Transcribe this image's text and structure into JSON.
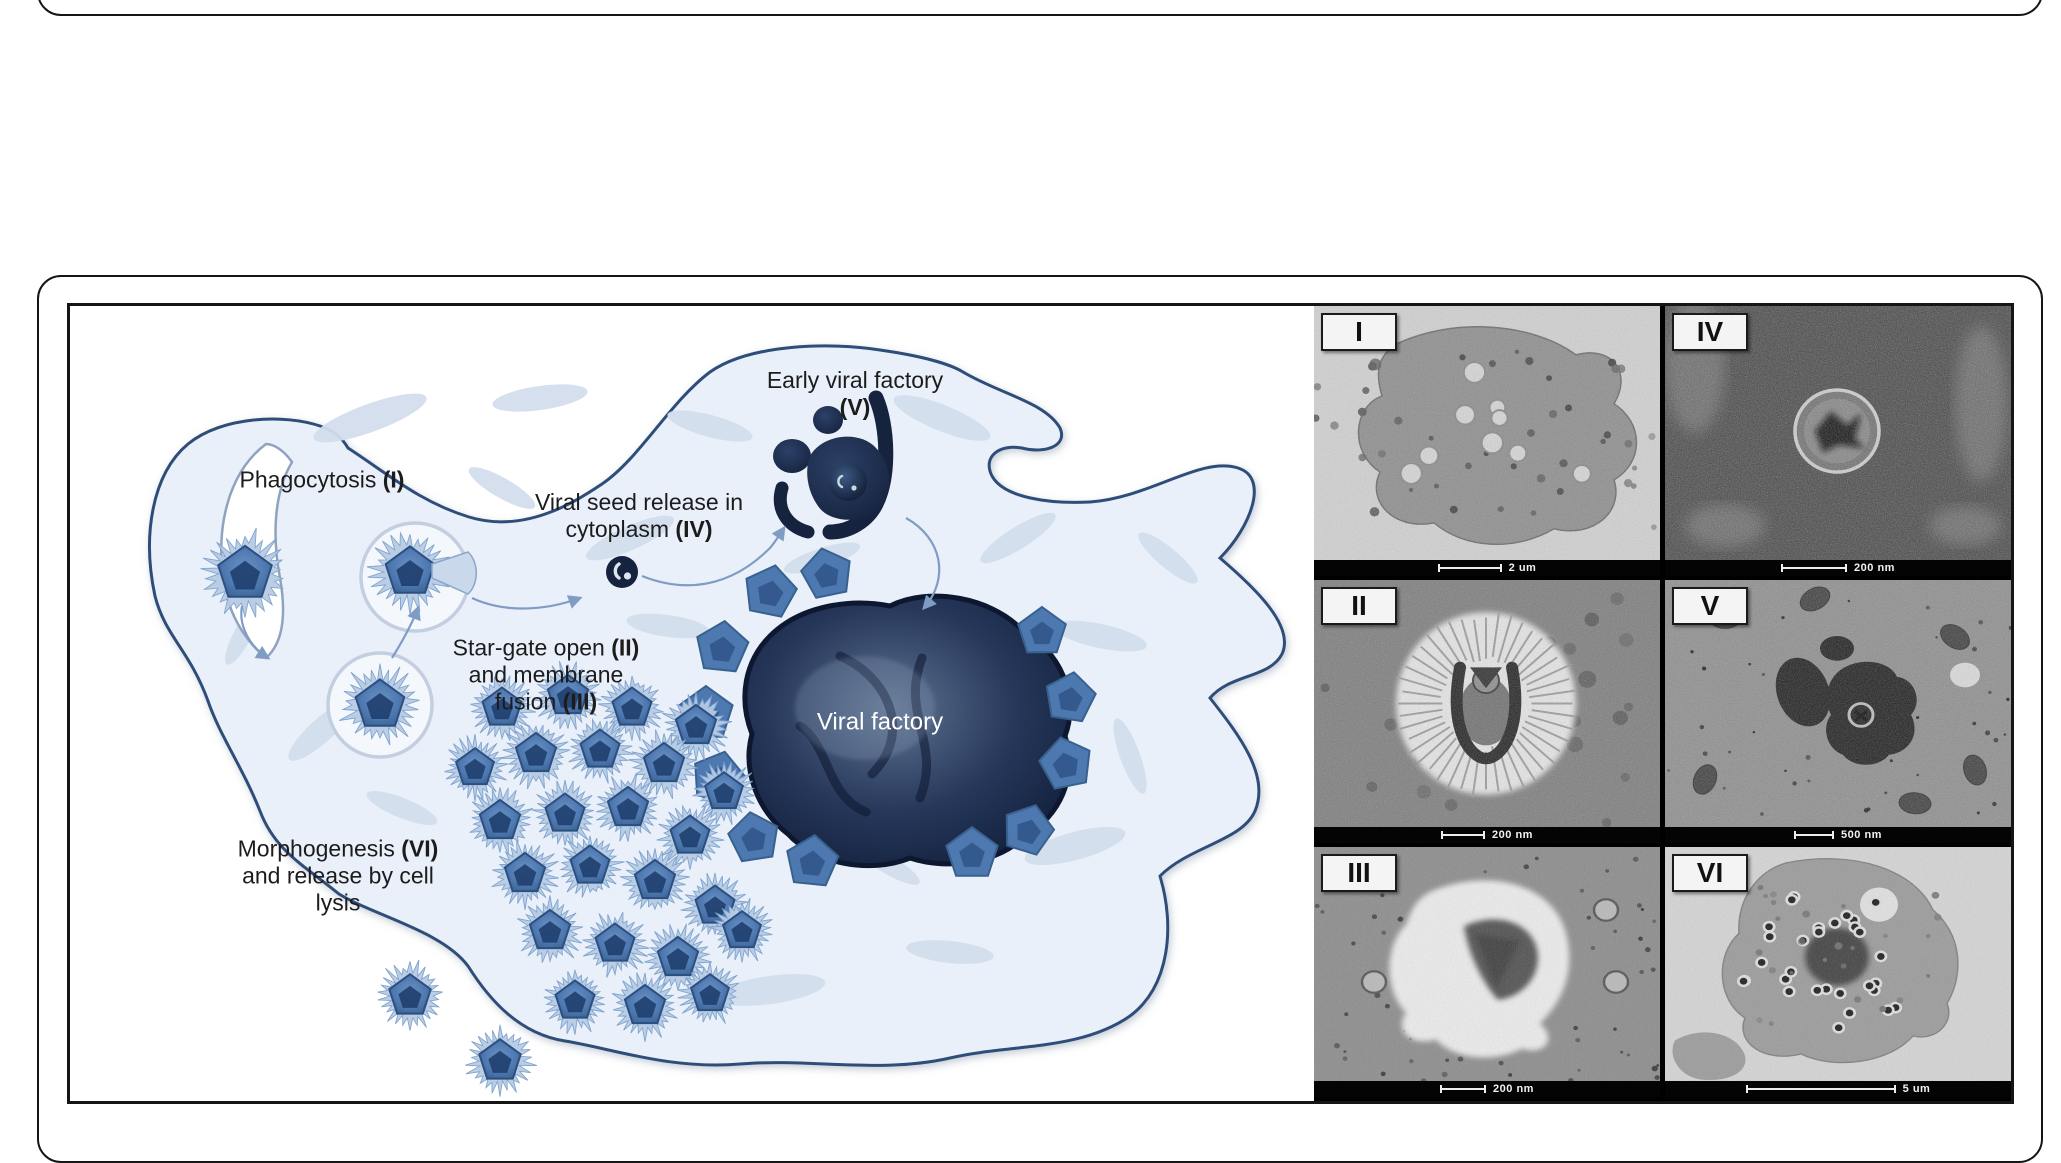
{
  "diagram": {
    "labels": {
      "phagocytosis": {
        "lines": [
          [
            {
              "t": "Phagocytosis "
            },
            {
              "t": "(I)",
              "b": true
            }
          ]
        ]
      },
      "stargate": {
        "lines": [
          [
            {
              "t": "Star-gate open "
            },
            {
              "t": "(II)",
              "b": true
            }
          ],
          [
            {
              "t": "and membrane"
            }
          ],
          [
            {
              "t": "fusion "
            },
            {
              "t": "(III)",
              "b": true
            }
          ]
        ]
      },
      "viral_seed": {
        "lines": [
          [
            {
              "t": "Viral seed release in"
            }
          ],
          [
            {
              "t": "cytoplasm "
            },
            {
              "t": "(IV)",
              "b": true
            }
          ]
        ]
      },
      "early_factory": {
        "lines": [
          [
            {
              "t": "Early viral factory"
            }
          ],
          [
            {
              "t": "(V)",
              "b": true
            }
          ]
        ]
      },
      "viral_factory": {
        "lines": [
          [
            {
              "t": "Viral factory"
            }
          ]
        ]
      },
      "morphogenesis": {
        "lines": [
          [
            {
              "t": "Morphogenesis "
            },
            {
              "t": "(VI)",
              "b": true
            }
          ],
          [
            {
              "t": "and release by cell"
            }
          ],
          [
            {
              "t": "lysis"
            }
          ]
        ]
      }
    },
    "icon_names": {
      "virion": "virion-icon",
      "seed": "viral-seed-icon",
      "vacuole": "vacuole-icon",
      "early_factory": "early-viral-factory-icon",
      "viral_factory": "viral-factory-icon",
      "arrow": "flow-arrow-icon"
    }
  },
  "em_panels": [
    {
      "numeral": "I",
      "scale_label": "2 um"
    },
    {
      "numeral": "IV",
      "scale_label": "200 nm"
    },
    {
      "numeral": "II",
      "scale_label": "200 nm"
    },
    {
      "numeral": "V",
      "scale_label": "500 nm"
    },
    {
      "numeral": "III",
      "scale_label": "200 nm"
    },
    {
      "numeral": "VI",
      "scale_label": "5 um"
    }
  ],
  "colors": {
    "page_bg": "#ffffff",
    "border_dark": "#151515",
    "cell_fill": "#e9f0f9",
    "cell_border": "#2d4d79",
    "organelle": "#d3deee",
    "virion_fill": "#4d78b0",
    "virion_core": "#1f3f6e",
    "virion_stroke": "#2c4f80",
    "fringe": "#b7cbe4",
    "fringe_stroke": "#7ba0cd",
    "factory_dark": "#16233f",
    "factory_mid": "#5f7391",
    "arrow": "#7f9dc4"
  }
}
